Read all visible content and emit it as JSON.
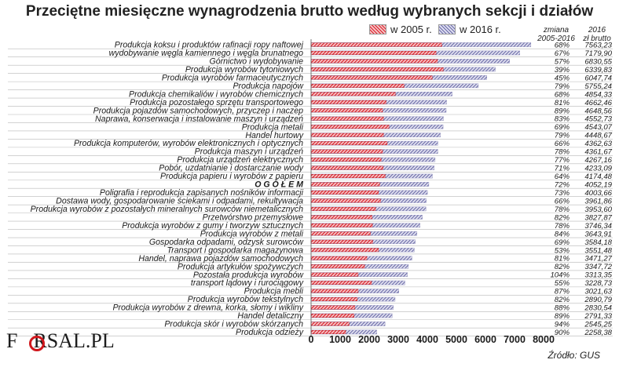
{
  "title": "Przeciętne miesięczne wynagrodzenia brutto według wybranych sekcji i działów",
  "legend": [
    {
      "label": "w 2005 r.",
      "color": "#d9202a"
    },
    {
      "label": "w 2016 r.",
      "color": "#6a6aa8"
    }
  ],
  "columns": {
    "change_header": [
      "zmiana",
      "2005-2016"
    ],
    "value_header": [
      "2016",
      "zł brutto"
    ]
  },
  "source": "Źródło: GUS",
  "logo": {
    "text_left": "F",
    "text_right": "RSAL.PL"
  },
  "chart_data": {
    "type": "bar",
    "orientation": "horizontal",
    "title": "Przeciętne miesięczne wynagrodzenia brutto według wybranych sekcji i działów",
    "xlim": [
      0,
      8000
    ],
    "xticks": [
      0,
      1000,
      2000,
      3000,
      4000,
      5000,
      6000,
      7000,
      8000
    ],
    "grid": false,
    "legend_position": "top",
    "categories": [
      "Produkcja koksu i produktów rafinacji ropy naftowej",
      "wydobywanie węgla kamiennego i węgla brunatnego",
      "Górnictwo i wydobywanie",
      "Produkcja wyrobów tytoniowych",
      "Produkcja wyrobów farmaceutycznych",
      "Produkcja napojów",
      "Produkcja chemikaliów i wyrobów chemicznych",
      "Produkcja pozostałego sprzętu transportowego",
      "Produkcja pojazdów samochodowych, przyczep i naczep",
      "Naprawa, konserwacja i instalowanie maszyn i urządzeń",
      "Produkcja metali",
      "Handel hurtowy",
      "Produkcja komputerów, wyrobów elektronicznych i optycznych",
      "Produkcja maszyn i urządzeń",
      "Produkcja urządzeń elektrycznych",
      "Pobór, uzdatnianie i dostarczanie wody",
      "Produkcja papieru i wyrobów z papieru",
      "O G Ó Ł E M",
      "Poligrafia i reprodukcja zapisanych nośników informacji",
      "Dostawa wody, gospodarowanie ściekami i odpadami, rekultywacja",
      "Produkcja wyrobów z pozostałych mineralnych surowców niemetalicznych",
      "Przetwórstwo przemysłowe",
      "Produkcja wyrobów z gumy i tworzyw sztucznych",
      "Produkcja wyrobów z metali",
      "Gospodarka odpadami, odzysk surowców",
      "Transport i gospodarka magazynowa",
      "Handel, naprawa pojazdów samochodowych",
      "Produkcja artykułów spożywczych",
      "Pozostała produkcja wyrobów",
      "transport lądowy i rurociągowy",
      "Produkcja mebli",
      "Produkcja wyrobów tekstylnych",
      "Produkcja wyrobów z drewna, korka, słomy i wikliny",
      "Handel detaliczny",
      "Produkcja skór i wyrobów skórzanych",
      "Produkcja odzieży"
    ],
    "series": [
      {
        "name": "w 2005 r.",
        "values": [
          4500,
          4300,
          4350,
          4550,
          4170,
          3200,
          2900,
          2580,
          2460,
          2490,
          2680,
          2490,
          2620,
          2460,
          2410,
          2480,
          2550,
          2360,
          2320,
          2390,
          2220,
          2100,
          2110,
          2040,
          2120,
          2320,
          1920,
          1840,
          1620,
          2080,
          1620,
          1590,
          1510,
          1480,
          1310,
          1190
        ]
      },
      {
        "name": "w 2016 r.",
        "values": [
          7563.23,
          7179.9,
          6830.55,
          6339.83,
          6047.74,
          5755.24,
          4854.33,
          4662.46,
          4648.56,
          4552.73,
          4543.07,
          4448.67,
          4362.63,
          4361.67,
          4267.16,
          4233.09,
          4174.48,
          4052.19,
          4003.66,
          3961.86,
          3953.6,
          3827.87,
          3746.34,
          3643.91,
          3584.18,
          3551.48,
          3471.27,
          3347.72,
          3313.35,
          3228.73,
          3021.63,
          2890.79,
          2830.54,
          2791.33,
          2545.25,
          2258.38
        ]
      }
    ],
    "change_labels": [
      "68%",
      "67%",
      "57%",
      "39%",
      "45%",
      "79%",
      "68%",
      "81%",
      "89%",
      "83%",
      "69%",
      "79%",
      "66%",
      "78%",
      "77%",
      "71%",
      "64%",
      "72%",
      "73%",
      "66%",
      "78%",
      "82%",
      "78%",
      "84%",
      "69%",
      "53%",
      "81%",
      "82%",
      "104%",
      "55%",
      "87%",
      "82%",
      "88%",
      "89%",
      "94%",
      "90%"
    ],
    "value_labels": [
      "7563,23",
      "7179,90",
      "6830,55",
      "6339,83",
      "6047,74",
      "5755,24",
      "4854,33",
      "4662,46",
      "4648,56",
      "4552,73",
      "4543,07",
      "4448,67",
      "4362,63",
      "4361,67",
      "4267,16",
      "4233,09",
      "4174,48",
      "4052,19",
      "4003,66",
      "3961,86",
      "3953,60",
      "3827,87",
      "3746,34",
      "3643,91",
      "3584,18",
      "3551,48",
      "3471,27",
      "3347,72",
      "3313,35",
      "3228,73",
      "3021,63",
      "2890,79",
      "2830,54",
      "2791,33",
      "2545,25",
      "2258,38"
    ]
  }
}
